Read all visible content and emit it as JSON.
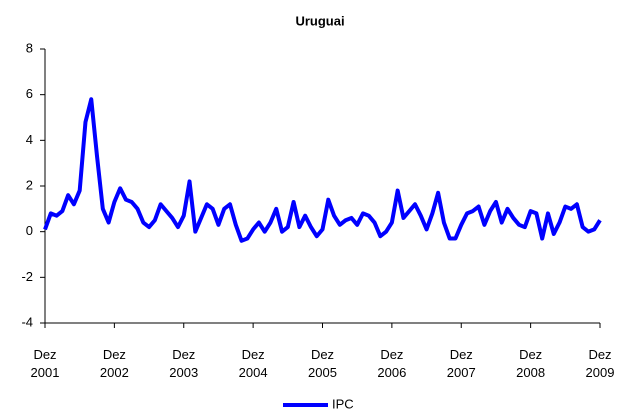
{
  "chart_data": {
    "type": "line",
    "title": "Uruguai",
    "categories": [
      "Dez 2001",
      null,
      null,
      null,
      null,
      null,
      null,
      null,
      null,
      null,
      null,
      null,
      "Dez 2002",
      null,
      null,
      null,
      null,
      null,
      null,
      null,
      null,
      null,
      null,
      null,
      "Dez 2003",
      null,
      null,
      null,
      null,
      null,
      null,
      null,
      null,
      null,
      null,
      null,
      "Dez 2004",
      null,
      null,
      null,
      null,
      null,
      null,
      null,
      null,
      null,
      null,
      null,
      "Dez 2005",
      null,
      null,
      null,
      null,
      null,
      null,
      null,
      null,
      null,
      null,
      null,
      "Dez 2006",
      null,
      null,
      null,
      null,
      null,
      null,
      null,
      null,
      null,
      null,
      null,
      "Dez 2007",
      null,
      null,
      null,
      null,
      null,
      null,
      null,
      null,
      null,
      null,
      null,
      "Dez 2008",
      null,
      null,
      null,
      null,
      null,
      null,
      null,
      null,
      null,
      null,
      null,
      "Dez 2009"
    ],
    "series": [
      {
        "name": "IPC",
        "color": "#0000ff",
        "values": [
          0.1,
          0.8,
          0.7,
          0.9,
          1.6,
          1.2,
          1.8,
          4.8,
          5.8,
          3.3,
          1.0,
          0.4,
          1.3,
          1.9,
          1.4,
          1.3,
          1.0,
          0.4,
          0.2,
          0.5,
          1.2,
          0.9,
          0.6,
          0.2,
          0.7,
          2.2,
          0.0,
          0.6,
          1.2,
          1.0,
          0.3,
          1.0,
          1.2,
          0.3,
          -0.4,
          -0.3,
          0.1,
          0.4,
          0.0,
          0.4,
          1.0,
          0.0,
          0.2,
          1.3,
          0.2,
          0.7,
          0.2,
          -0.2,
          0.1,
          1.4,
          0.7,
          0.3,
          0.5,
          0.6,
          0.3,
          0.8,
          0.7,
          0.4,
          -0.2,
          0.0,
          0.4,
          1.8,
          0.6,
          0.9,
          1.2,
          0.7,
          0.1,
          0.8,
          1.7,
          0.4,
          -0.3,
          -0.3,
          0.3,
          0.8,
          0.9,
          1.1,
          0.3,
          0.9,
          1.3,
          0.4,
          1.0,
          0.6,
          0.3,
          0.2,
          0.9,
          0.8,
          -0.3,
          0.8,
          -0.1,
          0.4,
          1.1,
          1.0,
          1.2,
          0.2,
          0.0,
          0.1,
          0.5
        ]
      }
    ],
    "ylim": [
      -4,
      8
    ],
    "yticks": [
      -4,
      -2,
      0,
      2,
      4,
      6,
      8
    ],
    "legend": "bottom"
  }
}
